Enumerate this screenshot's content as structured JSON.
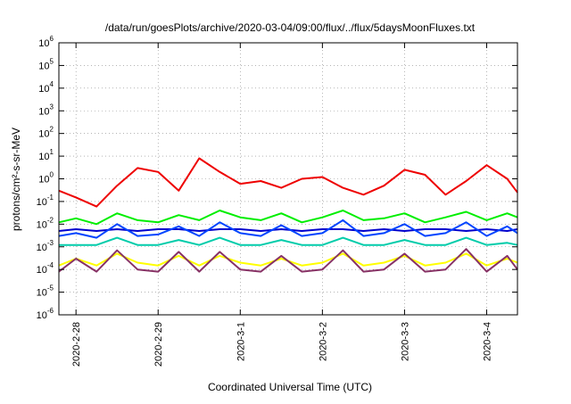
{
  "chart_data": {
    "type": "line",
    "title": "/data/run/goesPlots/archive/2020-03-04/09:00/flux/../flux/5daysMoonFluxes.txt",
    "xlabel": "Coordinated Universal Time (UTC)",
    "ylabel": "protons/cm²-s-sr-MeV",
    "x_tick_labels": [
      "2020-2-28",
      "2020-2-29",
      "2020-3-1",
      "2020-3-2",
      "2020-3-3",
      "2020-3-4"
    ],
    "xlim": [
      "2020-02-27 19:00",
      "2020-03-04 09:00"
    ],
    "y_scale": "log",
    "ylim": [
      1e-06,
      1000000.0
    ],
    "y_tick_labels": [
      {
        "base": "10",
        "exp": "6"
      },
      {
        "base": "10",
        "exp": "5"
      },
      {
        "base": "10",
        "exp": "4"
      },
      {
        "base": "10",
        "exp": "3"
      },
      {
        "base": "10",
        "exp": "2"
      },
      {
        "base": "10",
        "exp": "1"
      },
      {
        "base": "10",
        "exp": "0"
      },
      {
        "base": "10",
        "exp": "-1"
      },
      {
        "base": "10",
        "exp": "-2"
      },
      {
        "base": "10",
        "exp": "-3"
      },
      {
        "base": "10",
        "exp": "-4"
      },
      {
        "base": "10",
        "exp": "-5"
      },
      {
        "base": "10",
        "exp": "-6"
      }
    ],
    "grid": true,
    "legend": "none",
    "series": [
      {
        "color": "#00ee00",
        "x": [
          "2020-02-27 19:00",
          "2020-02-28 00:00",
          "2020-02-28 06:00",
          "2020-02-28 12:00",
          "2020-02-28 18:00",
          "2020-02-29 00:00",
          "2020-02-29 06:00",
          "2020-02-29 12:00",
          "2020-02-29 18:00",
          "2020-03-01 00:00",
          "2020-03-01 06:00",
          "2020-03-01 12:00",
          "2020-03-01 18:00",
          "2020-03-02 00:00",
          "2020-03-02 06:00",
          "2020-03-02 12:00",
          "2020-03-02 18:00",
          "2020-03-03 00:00",
          "2020-03-03 06:00",
          "2020-03-03 12:00",
          "2020-03-03 18:00",
          "2020-03-04 00:00",
          "2020-03-04 06:00",
          "2020-03-04 09:00"
        ],
        "values": [
          0.012,
          0.018,
          0.01,
          0.03,
          0.015,
          0.012,
          0.025,
          0.015,
          0.04,
          0.02,
          0.015,
          0.03,
          0.012,
          0.02,
          0.04,
          0.015,
          0.018,
          0.03,
          0.012,
          0.02,
          0.035,
          0.015,
          0.03,
          0.02
        ]
      },
      {
        "color": "#0000cc",
        "x": [
          "2020-02-27 19:00",
          "2020-02-28 00:00",
          "2020-02-28 06:00",
          "2020-02-28 12:00",
          "2020-02-28 18:00",
          "2020-02-29 00:00",
          "2020-02-29 06:00",
          "2020-02-29 12:00",
          "2020-02-29 18:00",
          "2020-03-01 00:00",
          "2020-03-01 06:00",
          "2020-03-01 12:00",
          "2020-03-01 18:00",
          "2020-03-02 00:00",
          "2020-03-02 06:00",
          "2020-03-02 12:00",
          "2020-03-02 18:00",
          "2020-03-03 00:00",
          "2020-03-03 06:00",
          "2020-03-03 12:00",
          "2020-03-03 18:00",
          "2020-03-04 00:00",
          "2020-03-04 06:00",
          "2020-03-04 09:00"
        ],
        "values": [
          0.005,
          0.006,
          0.005,
          0.006,
          0.005,
          0.006,
          0.006,
          0.005,
          0.006,
          0.006,
          0.005,
          0.006,
          0.005,
          0.006,
          0.006,
          0.005,
          0.006,
          0.005,
          0.006,
          0.006,
          0.005,
          0.006,
          0.005,
          0.006
        ]
      },
      {
        "color": "#0044ff",
        "x": [
          "2020-02-27 19:00",
          "2020-02-28 00:00",
          "2020-02-28 06:00",
          "2020-02-28 12:00",
          "2020-02-28 18:00",
          "2020-02-29 00:00",
          "2020-02-29 06:00",
          "2020-02-29 12:00",
          "2020-02-29 18:00",
          "2020-03-01 00:00",
          "2020-03-01 06:00",
          "2020-03-01 12:00",
          "2020-03-01 18:00",
          "2020-03-02 00:00",
          "2020-03-02 06:00",
          "2020-03-02 12:00",
          "2020-03-02 18:00",
          "2020-03-03 00:00",
          "2020-03-03 06:00",
          "2020-03-03 12:00",
          "2020-03-03 18:00",
          "2020-03-04 00:00",
          "2020-03-04 06:00",
          "2020-03-04 09:00"
        ],
        "values": [
          0.003,
          0.004,
          0.0025,
          0.01,
          0.003,
          0.0035,
          0.008,
          0.003,
          0.012,
          0.004,
          0.003,
          0.009,
          0.003,
          0.004,
          0.015,
          0.003,
          0.004,
          0.01,
          0.003,
          0.004,
          0.012,
          0.003,
          0.008,
          0.004
        ]
      },
      {
        "color": "#00ccaa",
        "x": [
          "2020-02-27 19:00",
          "2020-02-28 00:00",
          "2020-02-28 06:00",
          "2020-02-28 12:00",
          "2020-02-28 18:00",
          "2020-02-29 00:00",
          "2020-02-29 06:00",
          "2020-02-29 12:00",
          "2020-02-29 18:00",
          "2020-03-01 00:00",
          "2020-03-01 06:00",
          "2020-03-01 12:00",
          "2020-03-01 18:00",
          "2020-03-02 00:00",
          "2020-03-02 06:00",
          "2020-03-02 12:00",
          "2020-03-02 18:00",
          "2020-03-03 00:00",
          "2020-03-03 06:00",
          "2020-03-03 12:00",
          "2020-03-03 18:00",
          "2020-03-04 00:00",
          "2020-03-04 06:00",
          "2020-03-04 09:00"
        ],
        "values": [
          0.0012,
          0.0012,
          0.0012,
          0.0025,
          0.0012,
          0.0012,
          0.002,
          0.0012,
          0.0025,
          0.0012,
          0.0012,
          0.002,
          0.0012,
          0.0012,
          0.0025,
          0.0012,
          0.0012,
          0.002,
          0.0012,
          0.0012,
          0.0025,
          0.0012,
          0.0015,
          0.0012
        ]
      },
      {
        "color": "#ffff00",
        "x": [
          "2020-02-27 19:00",
          "2020-02-28 00:00",
          "2020-02-28 06:00",
          "2020-02-28 12:00",
          "2020-02-28 18:00",
          "2020-02-29 00:00",
          "2020-02-29 06:00",
          "2020-02-29 12:00",
          "2020-02-29 18:00",
          "2020-03-01 00:00",
          "2020-03-01 06:00",
          "2020-03-01 12:00",
          "2020-03-01 18:00",
          "2020-03-02 00:00",
          "2020-03-02 06:00",
          "2020-03-02 12:00",
          "2020-03-02 18:00",
          "2020-03-03 00:00",
          "2020-03-03 06:00",
          "2020-03-03 12:00",
          "2020-03-03 18:00",
          "2020-03-04 00:00",
          "2020-03-04 06:00",
          "2020-03-04 09:00"
        ],
        "values": [
          0.00015,
          0.0003,
          0.00015,
          0.0005,
          0.0002,
          0.00015,
          0.0004,
          0.00015,
          0.0004,
          0.0002,
          0.00015,
          0.0003,
          0.00015,
          0.0002,
          0.0005,
          0.00015,
          0.0002,
          0.0004,
          0.00015,
          0.0002,
          0.0005,
          0.00015,
          0.0003,
          0.0002
        ]
      },
      {
        "color": "#883366",
        "x": [
          "2020-02-27 19:00",
          "2020-02-28 00:00",
          "2020-02-28 06:00",
          "2020-02-28 12:00",
          "2020-02-28 18:00",
          "2020-02-29 00:00",
          "2020-02-29 06:00",
          "2020-02-29 12:00",
          "2020-02-29 18:00",
          "2020-03-01 00:00",
          "2020-03-01 06:00",
          "2020-03-01 12:00",
          "2020-03-01 18:00",
          "2020-03-02 00:00",
          "2020-03-02 06:00",
          "2020-03-02 12:00",
          "2020-03-02 18:00",
          "2020-03-03 00:00",
          "2020-03-03 06:00",
          "2020-03-03 12:00",
          "2020-03-03 18:00",
          "2020-03-04 00:00",
          "2020-03-04 06:00",
          "2020-03-04 09:00"
        ],
        "values": [
          8e-05,
          0.0003,
          8e-05,
          0.0007,
          0.0001,
          8e-05,
          0.0006,
          8e-05,
          0.0006,
          0.0001,
          8e-05,
          0.0004,
          8e-05,
          0.0001,
          0.0007,
          8e-05,
          0.0001,
          0.0005,
          8e-05,
          0.0001,
          0.0008,
          8e-05,
          0.0004,
          0.0001
        ]
      },
      {
        "color": "#ee0000",
        "x": [
          "2020-02-27 19:00",
          "2020-02-28 00:00",
          "2020-02-28 06:00",
          "2020-02-28 12:00",
          "2020-02-28 18:00",
          "2020-02-29 00:00",
          "2020-02-29 06:00",
          "2020-02-29 12:00",
          "2020-02-29 18:00",
          "2020-03-01 00:00",
          "2020-03-01 06:00",
          "2020-03-01 12:00",
          "2020-03-01 18:00",
          "2020-03-02 00:00",
          "2020-03-02 06:00",
          "2020-03-02 12:00",
          "2020-03-02 18:00",
          "2020-03-03 00:00",
          "2020-03-03 06:00",
          "2020-03-03 12:00",
          "2020-03-03 18:00",
          "2020-03-04 00:00",
          "2020-03-04 06:00",
          "2020-03-04 09:00"
        ],
        "values": [
          0.3,
          0.15,
          0.06,
          0.5,
          3.0,
          2.0,
          0.3,
          8.0,
          2.0,
          0.6,
          0.8,
          0.4,
          1.0,
          1.2,
          0.4,
          0.2,
          0.5,
          2.5,
          1.5,
          0.2,
          0.8,
          4.0,
          1.0,
          0.25
        ]
      }
    ]
  }
}
